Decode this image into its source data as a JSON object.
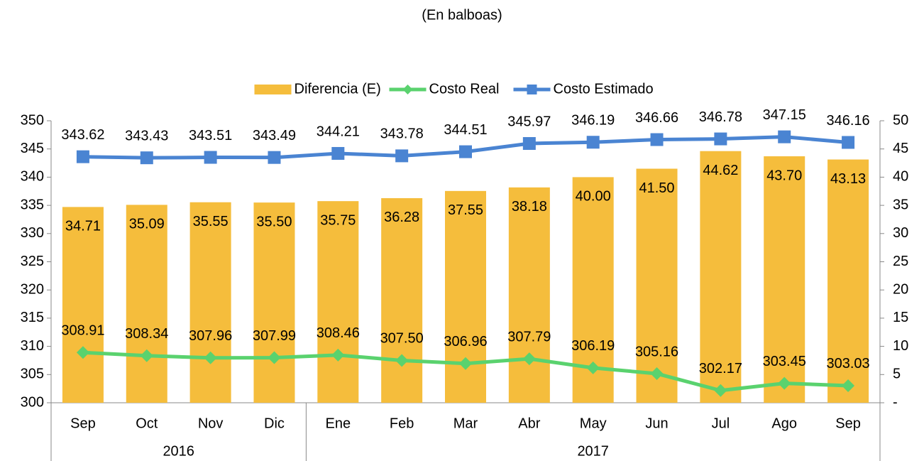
{
  "chart_data": {
    "type": "bar-line-combo",
    "title": "(En balboas)",
    "categories": [
      "Sep",
      "Oct",
      "Nov",
      "Dic",
      "Ene",
      "Feb",
      "Mar",
      "Abr",
      "May",
      "Jun",
      "Jul",
      "Ago",
      "Sep"
    ],
    "groups": [
      {
        "label": "2016",
        "size": 4
      },
      {
        "label": "2017",
        "size": 9
      }
    ],
    "series": [
      {
        "name": "Diferencia (E)",
        "type": "bar",
        "axis": "y2",
        "color": "#f5bd3c",
        "values": [
          34.71,
          35.09,
          35.55,
          35.5,
          35.75,
          36.28,
          37.55,
          38.18,
          40,
          41.5,
          44.62,
          43.7,
          43.13
        ],
        "value_labels": [
          "34.71",
          "35.09",
          "35.55",
          "35.50",
          "35.75",
          "36.28",
          "37.55",
          "38.18",
          "40.00",
          "41.50",
          "44.62",
          "43.70",
          "43.13"
        ]
      },
      {
        "name": "Costo Real",
        "type": "line",
        "marker": "diamond",
        "color": "#5ad26e",
        "values": [
          308.91,
          308.34,
          307.96,
          307.99,
          308.46,
          307.5,
          306.96,
          307.79,
          306.19,
          305.16,
          302.17,
          303.45,
          303.03
        ],
        "value_labels": [
          "308.91",
          "308.34",
          "307.96",
          "307.99",
          "308.46",
          "307.50",
          "306.96",
          "307.79",
          "306.19",
          "305.16",
          "302.17",
          "303.45",
          "303.03"
        ]
      },
      {
        "name": "Costo Estimado",
        "type": "line",
        "marker": "square",
        "color": "#4a84d2",
        "values": [
          343.62,
          343.43,
          343.51,
          343.49,
          344.21,
          343.78,
          344.51,
          345.97,
          346.19,
          346.66,
          346.78,
          347.15,
          346.16
        ]
      }
    ],
    "ylim": [
      300,
      350
    ],
    "yticks": [
      300,
      305,
      310,
      315,
      320,
      325,
      330,
      335,
      340,
      345,
      350
    ],
    "y2lim": [
      0,
      50
    ],
    "y2ticks": [
      {
        "value": 0,
        "label": "-"
      },
      5,
      10,
      15,
      20,
      25,
      30,
      35,
      40,
      45,
      50
    ],
    "legend": "top",
    "grid": false
  }
}
